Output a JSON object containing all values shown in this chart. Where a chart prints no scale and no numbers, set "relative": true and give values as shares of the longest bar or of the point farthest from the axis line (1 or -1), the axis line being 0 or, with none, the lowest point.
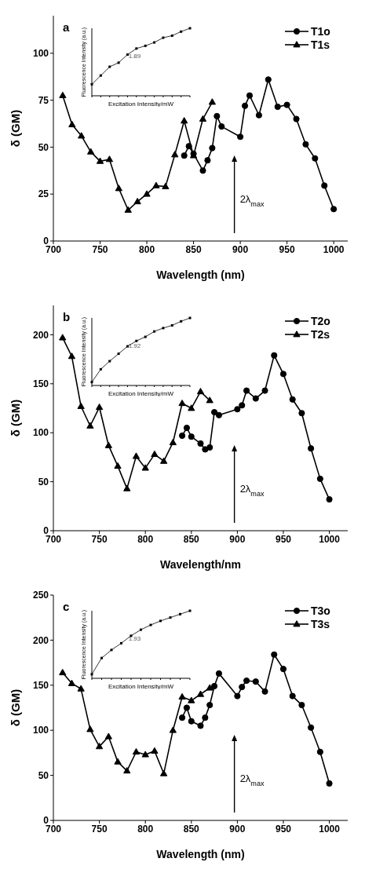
{
  "chart_data": [
    {
      "type": "line",
      "title": "a",
      "xlabel": "Wavelength (nm)",
      "ylabel": "δ (GM)",
      "xlim": [
        700,
        1015
      ],
      "ylim": [
        0,
        120
      ],
      "xticks": [
        700,
        750,
        800,
        850,
        900,
        950,
        1000
      ],
      "yticks": [
        0,
        25,
        50,
        75,
        100
      ],
      "legend": "top right",
      "line_style": "solid",
      "annotations": [
        "2λ$_{max}$"
      ],
      "series": [
        {
          "name": "T1o",
          "color": "#000000",
          "marker": "circle",
          "x": [
            840,
            845,
            850,
            860,
            865,
            870,
            875,
            880,
            900,
            905,
            910,
            920,
            930,
            940,
            950,
            960,
            970,
            980,
            990,
            1000
          ],
          "values": [
            45.5,
            50.5,
            46.5,
            37.5,
            43,
            49.5,
            66.5,
            61,
            55.5,
            72,
            77.5,
            67,
            86,
            71.5,
            72.5,
            65,
            51.5,
            44,
            29.5,
            17
          ]
        },
        {
          "name": "T1s",
          "color": "#000000",
          "marker": "triangle",
          "x": [
            710,
            720,
            730,
            740,
            750,
            760,
            770,
            780,
            790,
            800,
            810,
            820,
            830,
            840,
            850,
            860,
            870
          ],
          "values": [
            77.5,
            62,
            56,
            47.5,
            42.5,
            43.5,
            28,
            16.5,
            21,
            25,
            29.5,
            29,
            46,
            64,
            45.5,
            65,
            74
          ]
        }
      ]
    },
    {
      "type": "line",
      "relative": true,
      "xlabel": "Excitation Intensity/mW",
      "ylabel": "Fluorescence Intensity (a.u.)",
      "marker": "square",
      "annotations": [
        "1.89"
      ],
      "categories": [
        null,
        null,
        null,
        null,
        null,
        null,
        null,
        null,
        null,
        null,
        null,
        null
      ],
      "series": [
        {
          "color": "#000000",
          "values": [
            0.17,
            0.3,
            0.43,
            0.49,
            0.61,
            0.7,
            0.74,
            0.79,
            0.86,
            0.89,
            0.95,
            1
          ]
        }
      ]
    },
    {
      "type": "line",
      "title": "b",
      "xlabel": "Wavelength/nm",
      "ylabel": "δ (GM)",
      "xlim": [
        700,
        1020
      ],
      "ylim": [
        0,
        230
      ],
      "xticks": [
        700,
        750,
        800,
        850,
        900,
        950,
        1000
      ],
      "yticks": [
        0,
        50,
        100,
        150,
        200
      ],
      "legend": "top right",
      "line_style": "solid",
      "annotations": [
        "2λ$_{max}$"
      ],
      "series": [
        {
          "name": "T2o",
          "color": "#000000",
          "marker": "circle",
          "x": [
            840,
            845,
            850,
            860,
            865,
            870,
            875,
            880,
            900,
            905,
            910,
            920,
            930,
            940,
            950,
            960,
            970,
            980,
            990,
            1000
          ],
          "values": [
            97,
            105,
            96,
            89,
            83,
            85,
            121,
            118,
            124,
            128,
            143,
            135,
            143,
            179,
            160,
            134,
            120,
            84,
            53,
            32
          ]
        },
        {
          "name": "T2s",
          "color": "#000000",
          "marker": "triangle",
          "x": [
            710,
            720,
            730,
            740,
            750,
            760,
            770,
            780,
            790,
            800,
            810,
            820,
            830,
            840,
            850,
            860,
            870
          ],
          "values": [
            197,
            178,
            127,
            107,
            126,
            87,
            66,
            43,
            76,
            64,
            78,
            71,
            90,
            130,
            125,
            142,
            133
          ]
        }
      ]
    },
    {
      "type": "line",
      "relative": true,
      "xlabel": "Excitation Intensity/mW",
      "ylabel": "Fluorescence Intensity (a.u.)",
      "marker": "square",
      "annotations": [
        "1.92"
      ],
      "categories": [
        null,
        null,
        null,
        null,
        null,
        null,
        null,
        null,
        null,
        null,
        null,
        null
      ],
      "series": [
        {
          "color": "#000000",
          "values": [
            0.05,
            0.24,
            0.36,
            0.47,
            0.58,
            0.66,
            0.72,
            0.8,
            0.85,
            0.89,
            0.95,
            1
          ]
        }
      ]
    },
    {
      "type": "line",
      "title": "c",
      "xlabel": "Wavelength (nm)",
      "ylabel": "δ (GM)",
      "xlim": [
        700,
        1020
      ],
      "ylim": [
        0,
        250
      ],
      "xticks": [
        700,
        750,
        800,
        850,
        900,
        950,
        1000
      ],
      "yticks": [
        0,
        50,
        100,
        150,
        200,
        250
      ],
      "legend": "top right",
      "line_style": "solid",
      "annotations": [
        "2λ$_{max}$"
      ],
      "series": [
        {
          "name": "T3o",
          "color": "#000000",
          "marker": "circle",
          "x": [
            840,
            845,
            850,
            860,
            865,
            870,
            875,
            880,
            900,
            905,
            910,
            920,
            930,
            940,
            950,
            960,
            970,
            980,
            990,
            1000
          ],
          "values": [
            114,
            125,
            110,
            105,
            114,
            128,
            149,
            163,
            138,
            148,
            155,
            154,
            143,
            184,
            168,
            138,
            128,
            103,
            76,
            41
          ]
        },
        {
          "name": "T3s",
          "color": "#000000",
          "marker": "triangle",
          "x": [
            710,
            720,
            730,
            740,
            750,
            760,
            770,
            780,
            790,
            800,
            810,
            820,
            830,
            840,
            850,
            860,
            870
          ],
          "values": [
            164,
            152,
            146,
            101,
            82,
            93,
            65,
            55,
            76,
            73,
            77,
            52,
            100,
            137,
            133,
            140,
            147
          ]
        }
      ]
    },
    {
      "type": "line",
      "relative": true,
      "xlabel": "Excitation Intensity/mW",
      "ylabel": "Fluorescence Intensity (a.u.)",
      "marker": "square",
      "annotations": [
        "1.93"
      ],
      "categories": [
        null,
        null,
        null,
        null,
        null,
        null,
        null,
        null,
        null,
        null,
        null
      ],
      "series": [
        {
          "color": "#000000",
          "values": [
            0.06,
            0.3,
            0.42,
            0.52,
            0.63,
            0.72,
            0.79,
            0.85,
            0.9,
            0.95,
            1
          ]
        }
      ]
    }
  ]
}
